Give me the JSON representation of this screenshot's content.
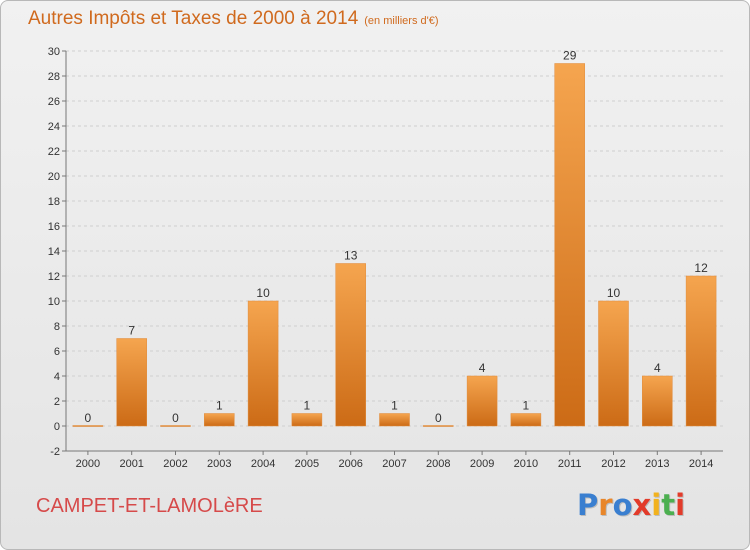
{
  "header": {
    "title": "Autres Impôts et Taxes de 2000 à 2014",
    "unit": "(en milliers d'€)"
  },
  "footer": {
    "commune": "CAMPET-ET-LAMOLèRE",
    "brand": "Proxiti",
    "brand_colors": [
      "#3a7fd0",
      "#e8862a",
      "#3a7fd0",
      "#e23b2a",
      "#f2b21e",
      "#4caf50",
      "#e23b2a"
    ]
  },
  "colors": {
    "accent": "#d06a1e",
    "bar_light": "#f5a54f",
    "bar_dark": "#cc6b16",
    "grid": "#cfcfcf",
    "commune": "#d64a4a"
  },
  "chart_data": {
    "type": "bar",
    "title": "Autres Impôts et Taxes de 2000 à 2014",
    "subtitle": "(en milliers d'€)",
    "categories": [
      "2000",
      "2001",
      "2002",
      "2003",
      "2004",
      "2005",
      "2006",
      "2007",
      "2008",
      "2009",
      "2010",
      "2011",
      "2012",
      "2013",
      "2014"
    ],
    "values": [
      0,
      7,
      0,
      1,
      10,
      1,
      13,
      1,
      0,
      4,
      1,
      29,
      10,
      4,
      12
    ],
    "ylim": [
      -2,
      30
    ],
    "yticks": [
      -2,
      0,
      2,
      4,
      6,
      8,
      10,
      12,
      14,
      16,
      18,
      20,
      22,
      24,
      26,
      28,
      30
    ],
    "grid": true,
    "legend": "none"
  }
}
